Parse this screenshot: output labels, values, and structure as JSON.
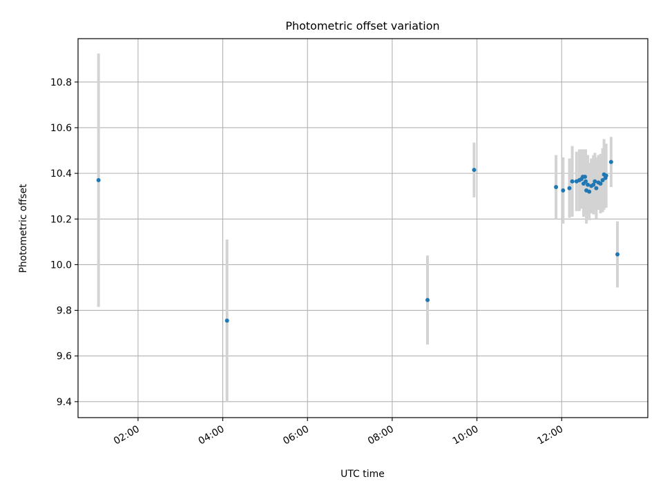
{
  "chart_data": {
    "type": "scatter",
    "title": "Photometric offset variation",
    "xlabel": "UTC time",
    "ylabel": "Photometric offset",
    "xlim": [
      "00:35",
      "14:02"
    ],
    "ylim": [
      9.33,
      10.99
    ],
    "grid": true,
    "xticks": [
      "02:00",
      "04:00",
      "06:00",
      "08:00",
      "10:00",
      "12:00"
    ],
    "yticks": [
      9.4,
      9.6,
      9.8,
      10.0,
      10.2,
      10.4,
      10.6,
      10.8
    ],
    "points": [
      {
        "x": "01:04",
        "y": 10.37,
        "err": 0.555
      },
      {
        "x": "04:06",
        "y": 9.755,
        "err": 0.355
      },
      {
        "x": "08:50",
        "y": 9.845,
        "err": 0.195
      },
      {
        "x": "09:56",
        "y": 10.415,
        "err": 0.12
      },
      {
        "x": "11:52",
        "y": 10.34,
        "err": 0.14
      },
      {
        "x": "12:02",
        "y": 10.325,
        "err": 0.145
      },
      {
        "x": "12:11",
        "y": 10.335,
        "err": 0.13
      },
      {
        "x": "12:15",
        "y": 10.365,
        "err": 0.155
      },
      {
        "x": "12:21",
        "y": 10.365,
        "err": 0.13
      },
      {
        "x": "12:25",
        "y": 10.37,
        "err": 0.135
      },
      {
        "x": "12:28",
        "y": 10.375,
        "err": 0.13
      },
      {
        "x": "12:30",
        "y": 10.385,
        "err": 0.12
      },
      {
        "x": "12:31",
        "y": 10.355,
        "err": 0.145
      },
      {
        "x": "12:33",
        "y": 10.385,
        "err": 0.12
      },
      {
        "x": "12:34",
        "y": 10.365,
        "err": 0.14
      },
      {
        "x": "12:35",
        "y": 10.325,
        "err": 0.145
      },
      {
        "x": "12:37",
        "y": 10.35,
        "err": 0.13
      },
      {
        "x": "12:39",
        "y": 10.32,
        "err": 0.125
      },
      {
        "x": "12:42",
        "y": 10.345,
        "err": 0.12
      },
      {
        "x": "12:45",
        "y": 10.35,
        "err": 0.13
      },
      {
        "x": "12:47",
        "y": 10.365,
        "err": 0.125
      },
      {
        "x": "12:49",
        "y": 10.335,
        "err": 0.135
      },
      {
        "x": "12:52",
        "y": 10.36,
        "err": 0.12
      },
      {
        "x": "12:55",
        "y": 10.355,
        "err": 0.13
      },
      {
        "x": "12:58",
        "y": 10.37,
        "err": 0.14
      },
      {
        "x": "13:00",
        "y": 10.395,
        "err": 0.155
      },
      {
        "x": "13:02",
        "y": 10.38,
        "err": 0.13
      },
      {
        "x": "13:03",
        "y": 10.39,
        "err": 0.14
      },
      {
        "x": "13:10",
        "y": 10.45,
        "err": 0.11
      },
      {
        "x": "13:19",
        "y": 10.045,
        "err": 0.145
      }
    ],
    "colors": {
      "marker": "#1f77b4",
      "errorbar": "#d3d3d3",
      "grid": "#b0b0b0"
    }
  }
}
